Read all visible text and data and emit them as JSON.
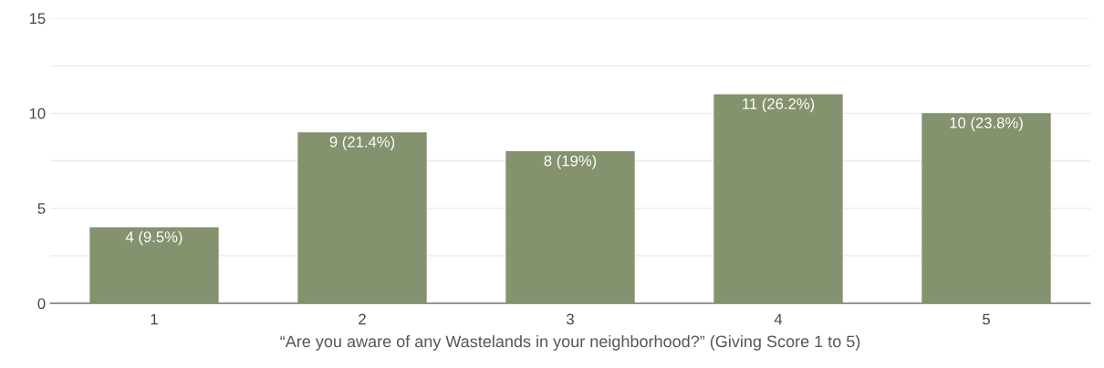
{
  "chart_data": {
    "type": "bar",
    "xlabel": "“Are you aware of any Wastelands in your neighborhood?” (Giving Score 1 to 5)",
    "categories": [
      "1",
      "2",
      "3",
      "4",
      "5"
    ],
    "values": [
      4,
      9,
      8,
      11,
      10
    ],
    "value_labels": [
      "4 (9.5%)",
      "9 (21.4%)",
      "8 (19%)",
      "11 (26.2%)",
      "10 (23.8%)"
    ],
    "color": "#84926e",
    "ylim": [
      0,
      15
    ],
    "yticks": [
      0,
      {
        "value": 2.5,
        "label": null
      },
      5,
      {
        "value": 7.5,
        "label": null
      },
      10,
      {
        "value": 12.5,
        "label": null
      },
      15
    ],
    "grid": "y"
  }
}
